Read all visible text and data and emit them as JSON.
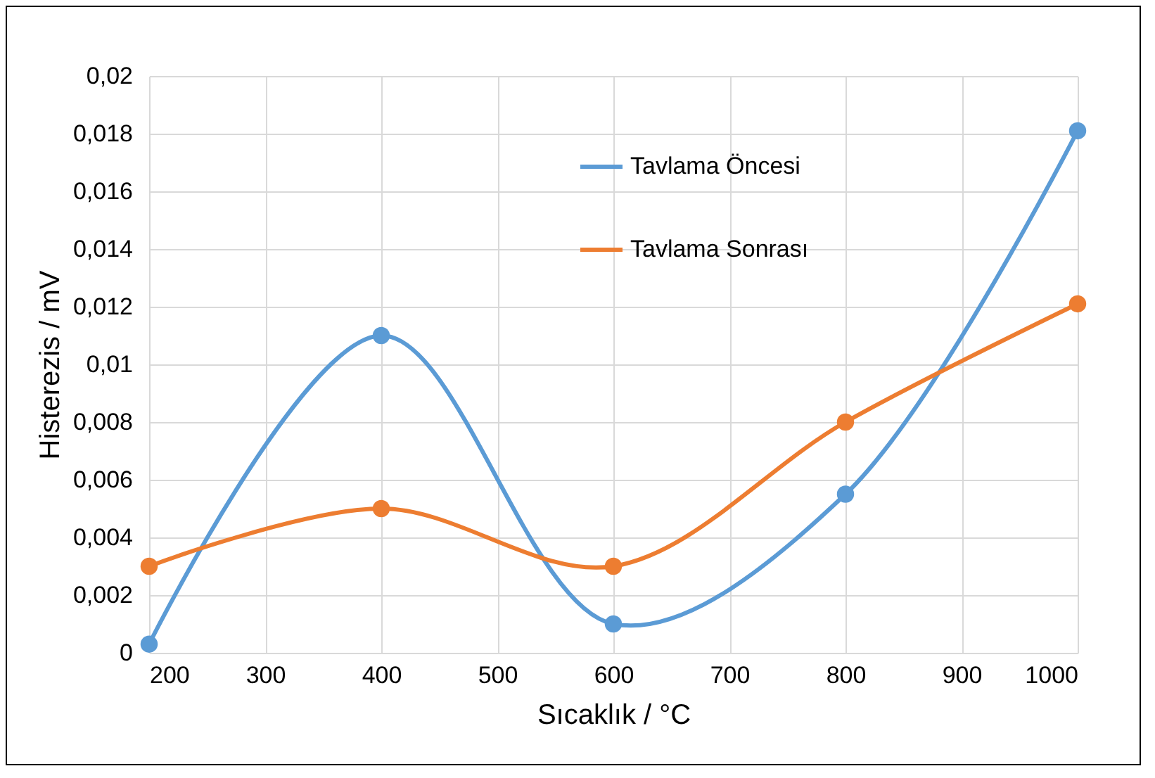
{
  "chart_data": {
    "type": "line",
    "xlabel": "Sıcaklık / °C",
    "ylabel": "Histerezis / mV",
    "x": [
      200,
      400,
      600,
      800,
      1000
    ],
    "series": [
      {
        "name": "Tavlama Öncesi",
        "color": "#5b9bd5",
        "values": [
          0.0003,
          0.011,
          0.001,
          0.0055,
          0.0181
        ]
      },
      {
        "name": "Tavlama Sonrası",
        "color": "#ed7d31",
        "values": [
          0.003,
          0.005,
          0.003,
          0.008,
          0.0121
        ]
      }
    ],
    "xlim": [
      200,
      1000
    ],
    "xticks": [
      200,
      300,
      400,
      500,
      600,
      700,
      800,
      900,
      1000
    ],
    "ylim": [
      0,
      0.02
    ],
    "yticks": [
      {
        "value": 0,
        "label": "0"
      },
      {
        "value": 0.002,
        "label": "0,002"
      },
      {
        "value": 0.004,
        "label": "0,004"
      },
      {
        "value": 0.006,
        "label": "0,006"
      },
      {
        "value": 0.008,
        "label": "0,008"
      },
      {
        "value": 0.01,
        "label": "0,01"
      },
      {
        "value": 0.012,
        "label": "0,012"
      },
      {
        "value": 0.014,
        "label": "0,014"
      },
      {
        "value": 0.016,
        "label": "0,016"
      },
      {
        "value": 0.018,
        "label": "0,018"
      },
      {
        "value": 0.02,
        "label": "0,02"
      }
    ],
    "grid": true,
    "legend": "top right",
    "marker": "circle",
    "line_style": "solid"
  }
}
